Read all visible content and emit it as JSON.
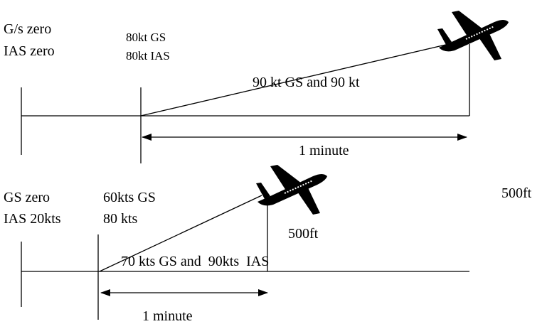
{
  "top": {
    "left_labels": [
      "G/s zero",
      "IAS  zero"
    ],
    "start_labels": [
      "80kt GS",
      "80kt IAS"
    ],
    "climb_label": "90 kt GS and 90 kt",
    "duration": "1 minute",
    "height": "500ft"
  },
  "bottom": {
    "left_labels": [
      "GS zero",
      "IAS 20kts"
    ],
    "start_labels": [
      "60kts GS",
      "80 kts"
    ],
    "climb_label": "70 kts GS and  90kts  IAS",
    "duration": "1 minute",
    "height": "500ft"
  }
}
